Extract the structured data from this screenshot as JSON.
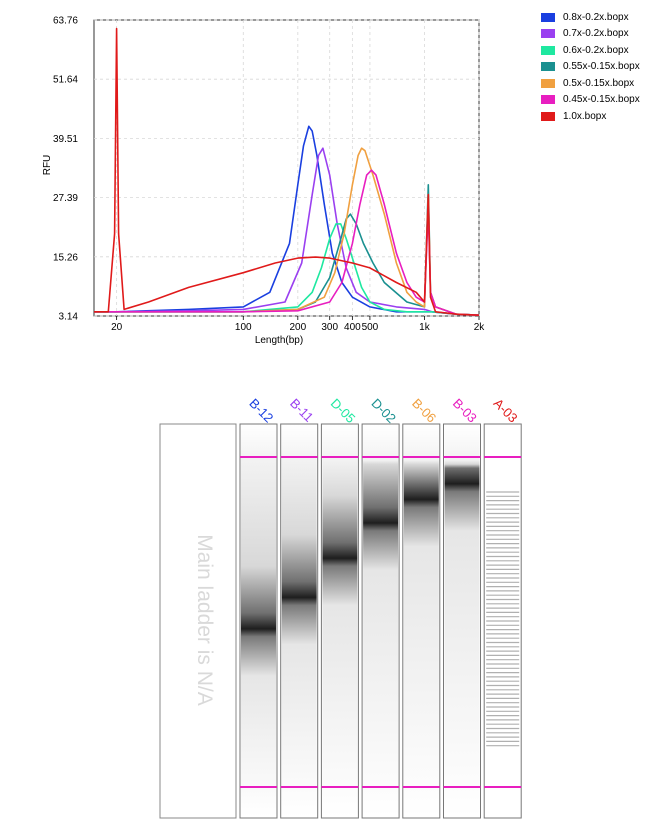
{
  "chart_data": {
    "type": "line",
    "title": "",
    "xlabel": "Length(bp)",
    "ylabel": "RFU",
    "x_scale": "log",
    "xlim": [
      15,
      2000
    ],
    "ylim": [
      3.14,
      63.76
    ],
    "x_ticks": [
      20,
      100,
      200,
      300,
      400,
      500,
      1000,
      2000
    ],
    "x_tick_labels": [
      "20",
      "100",
      "200",
      "300",
      "400",
      "500",
      "1k",
      "2k"
    ],
    "y_ticks": [
      3.14,
      15.26,
      27.39,
      39.51,
      51.64,
      63.76
    ],
    "y_tick_labels": [
      "3.14",
      "15.26",
      "27.39",
      "39.51",
      "51.64",
      "63.76"
    ],
    "grid": true,
    "legend_position": "right",
    "series": [
      {
        "name": "0.8x-0.2x.bopx",
        "color": "#1a3fe0",
        "x": [
          15,
          20,
          50,
          100,
          140,
          180,
          200,
          215,
          230,
          240,
          255,
          280,
          310,
          350,
          400,
          500,
          700,
          900,
          1000,
          1100,
          1500,
          2000
        ],
        "y": [
          4,
          4,
          4.5,
          5,
          8,
          18,
          30,
          38,
          42,
          41,
          36,
          26,
          16,
          10,
          7,
          5,
          4,
          4,
          4,
          4,
          3.5,
          3.3
        ]
      },
      {
        "name": "0.7x-0.2x.bopx",
        "color": "#9a40f0",
        "x": [
          15,
          20,
          50,
          100,
          170,
          210,
          240,
          260,
          275,
          300,
          330,
          370,
          420,
          500,
          700,
          1000,
          1100,
          1500,
          2000
        ],
        "y": [
          4,
          4,
          4.2,
          4.5,
          6,
          14,
          28,
          36,
          37.5,
          32,
          22,
          13,
          8,
          6,
          5,
          4.5,
          4,
          3.5,
          3.3
        ]
      },
      {
        "name": "0.6x-0.2x.bopx",
        "color": "#1ee8a0",
        "x": [
          15,
          20,
          100,
          200,
          240,
          270,
          300,
          325,
          345,
          370,
          400,
          450,
          500,
          600,
          800,
          1000,
          1100,
          1500,
          2000
        ],
        "y": [
          4,
          4,
          4,
          5,
          8,
          13,
          19,
          22,
          22,
          19,
          15,
          9,
          6,
          4.5,
          4,
          4,
          4,
          3.5,
          3.3
        ]
      },
      {
        "name": "0.55x-0.15x.bopx",
        "color": "#1a9090",
        "x": [
          15,
          20,
          100,
          200,
          250,
          300,
          340,
          370,
          390,
          420,
          460,
          520,
          600,
          800,
          1000,
          1050,
          1080,
          1150,
          1500,
          2000
        ],
        "y": [
          4,
          4,
          4,
          4.5,
          6,
          11,
          18,
          23,
          24,
          22,
          18,
          14,
          10,
          6,
          5,
          30,
          8,
          5,
          3.5,
          3.3
        ]
      },
      {
        "name": "0.5x-0.15x.bopx",
        "color": "#f0a040",
        "x": [
          15,
          20,
          100,
          200,
          280,
          320,
          360,
          400,
          430,
          450,
          470,
          520,
          600,
          700,
          800,
          900,
          1000,
          1050,
          1080,
          1150,
          1500,
          2000
        ],
        "y": [
          4,
          4,
          4,
          4.5,
          7,
          12,
          20,
          30,
          36,
          37.5,
          37,
          32,
          24,
          14,
          8,
          6,
          5,
          28,
          8,
          5,
          3.5,
          3.3
        ]
      },
      {
        "name": "0.45x-0.15x.bopx",
        "color": "#e81ec0",
        "x": [
          15,
          20,
          100,
          200,
          300,
          350,
          400,
          440,
          480,
          510,
          540,
          600,
          700,
          800,
          900,
          1000,
          1050,
          1080,
          1150,
          1500,
          2000
        ],
        "y": [
          4,
          4,
          4,
          4.2,
          6,
          10,
          18,
          26,
          32,
          33,
          32,
          26,
          16,
          10,
          7,
          6,
          25,
          8,
          5,
          3.5,
          3.3
        ]
      },
      {
        "name": "1.0x.bopx",
        "color": "#e01a1a",
        "x": [
          15,
          18,
          19.5,
          20,
          20.5,
          22,
          30,
          50,
          100,
          150,
          200,
          250,
          300,
          400,
          500,
          700,
          900,
          1000,
          1050,
          1080,
          1150,
          1500,
          2000
        ],
        "y": [
          4,
          4,
          20,
          62,
          20,
          4.5,
          6,
          9,
          12,
          14,
          15,
          15.2,
          15,
          14,
          13,
          10,
          8,
          6,
          28,
          7,
          4,
          3.5,
          3.3
        ]
      }
    ]
  },
  "gel": {
    "ladder_text": "Main ladder is N/A",
    "lanes": [
      {
        "label": "B-12",
        "color": "#1a3fe0",
        "band": 0.52
      },
      {
        "label": "B-11",
        "color": "#9a40f0",
        "band": 0.44
      },
      {
        "label": "D-05",
        "color": "#1ee8a0",
        "band": 0.34
      },
      {
        "label": "D-02",
        "color": "#1a9090",
        "band": 0.25
      },
      {
        "label": "B-06",
        "color": "#f0a040",
        "band": 0.19
      },
      {
        "label": "B-03",
        "color": "#e81ec0",
        "band": 0.15
      },
      {
        "label": "A-03",
        "color": "#e01a1a",
        "band": null
      }
    ],
    "marker_color": "#e81ec0"
  }
}
